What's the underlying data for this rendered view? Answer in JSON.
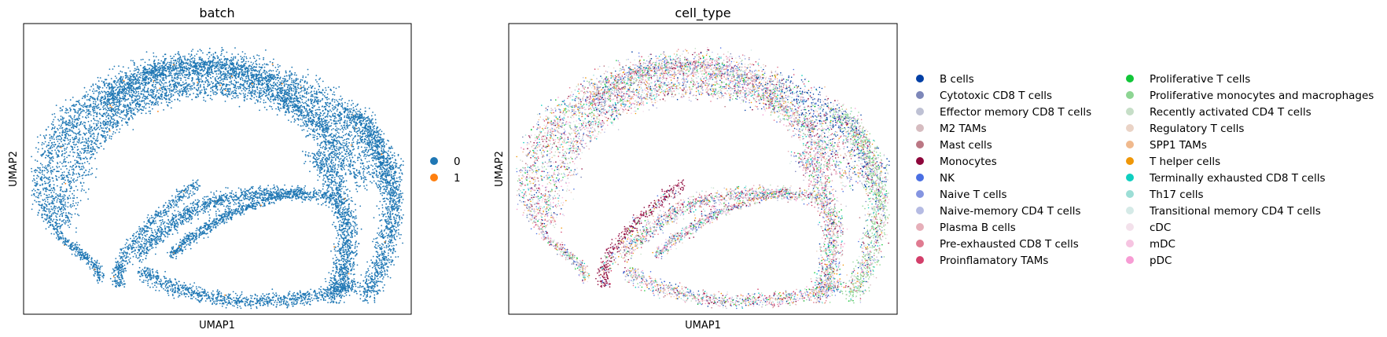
{
  "chart_data": [
    {
      "type": "scatter",
      "title": "batch",
      "xlabel": "UMAP1",
      "ylabel": "UMAP2",
      "grid": false,
      "ticks": false,
      "legend_placement": "right",
      "series": [
        {
          "name": "0",
          "color": "#1f77b4"
        },
        {
          "name": "1",
          "color": "#ff7f0e"
        }
      ]
    },
    {
      "type": "scatter",
      "title": "cell_type",
      "xlabel": "UMAP1",
      "ylabel": "UMAP2",
      "grid": false,
      "ticks": false,
      "legend_placement": "right",
      "series": [
        {
          "name": "B cells",
          "color": "#023fa5"
        },
        {
          "name": "Cytotoxic CD8 T cells",
          "color": "#7d87b9"
        },
        {
          "name": "Effector memory CD8 T cells",
          "color": "#bec1d4"
        },
        {
          "name": "M2 TAMs",
          "color": "#d6bcc0"
        },
        {
          "name": "Mast cells",
          "color": "#bb7784"
        },
        {
          "name": "Monocytes",
          "color": "#8e063b"
        },
        {
          "name": "NK",
          "color": "#4a6fe3"
        },
        {
          "name": "Naive T cells",
          "color": "#8595e1"
        },
        {
          "name": "Naive-memory CD4 T cells",
          "color": "#b5bbe3"
        },
        {
          "name": "Plasma B cells",
          "color": "#e6afb9"
        },
        {
          "name": "Pre-exhausted CD8 T cells",
          "color": "#e07b91"
        },
        {
          "name": "Proinflamatory TAMs",
          "color": "#d33f6a"
        },
        {
          "name": "Proliferative T cells",
          "color": "#11c638"
        },
        {
          "name": "Proliferative monocytes and macrophages",
          "color": "#8dd593"
        },
        {
          "name": "Recently activated CD4 T cells",
          "color": "#c6dec7"
        },
        {
          "name": "Regulatory T cells",
          "color": "#ead3c6"
        },
        {
          "name": "SPP1 TAMs",
          "color": "#f0b98d"
        },
        {
          "name": "T helper cells",
          "color": "#ef9708"
        },
        {
          "name": "Terminally exhausted CD8 T cells",
          "color": "#0fcfc0"
        },
        {
          "name": "Th17 cells",
          "color": "#9cded6"
        },
        {
          "name": "Transitional memory CD4 T cells",
          "color": "#d5eae7"
        },
        {
          "name": "cDC",
          "color": "#f3e1eb"
        },
        {
          "name": "mDC",
          "color": "#f6c4e1"
        },
        {
          "name": "pDC",
          "color": "#f79cd4"
        }
      ]
    }
  ]
}
